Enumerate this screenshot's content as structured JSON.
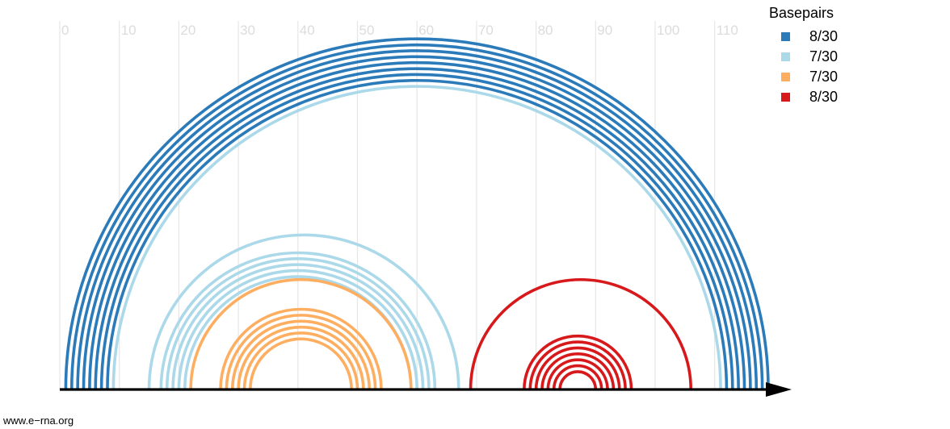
{
  "chart_data": {
    "type": "arc",
    "xlim": [
      0,
      114
    ],
    "x_ticks": [
      0,
      10,
      20,
      30,
      40,
      50,
      60,
      70,
      80,
      90,
      100,
      110
    ],
    "grid": true,
    "legend_title": "Basepairs",
    "legend_position": "top-right",
    "series": [
      {
        "name": "8/30",
        "color": "#2b7bba",
        "pairs": [
          [
            1,
            119
          ],
          [
            2,
            118
          ],
          [
            3,
            117
          ],
          [
            4,
            116
          ],
          [
            5,
            115
          ],
          [
            6,
            114
          ],
          [
            7,
            113
          ],
          [
            8,
            112
          ]
        ]
      },
      {
        "name": "7/30",
        "color": "#abd9e9",
        "pairs": [
          [
            9,
            111
          ],
          [
            15,
            67
          ],
          [
            17,
            63
          ],
          [
            18,
            62
          ],
          [
            19,
            61
          ],
          [
            20,
            60
          ],
          [
            21,
            59
          ]
        ]
      },
      {
        "name": "7/30",
        "color": "#fdae61",
        "pairs": [
          [
            22,
            59
          ],
          [
            27,
            54
          ],
          [
            28,
            53
          ],
          [
            29,
            52
          ],
          [
            30,
            51
          ],
          [
            31,
            50
          ],
          [
            32,
            49
          ]
        ]
      },
      {
        "name": "8/30",
        "color": "#d7191c",
        "pairs": [
          [
            69,
            106
          ],
          [
            78,
            96
          ],
          [
            79,
            95
          ],
          [
            80,
            94
          ],
          [
            81,
            93
          ],
          [
            82,
            92
          ],
          [
            83,
            91
          ],
          [
            84,
            90
          ]
        ]
      }
    ]
  },
  "footer": {
    "text": "www.e−rna.org"
  }
}
